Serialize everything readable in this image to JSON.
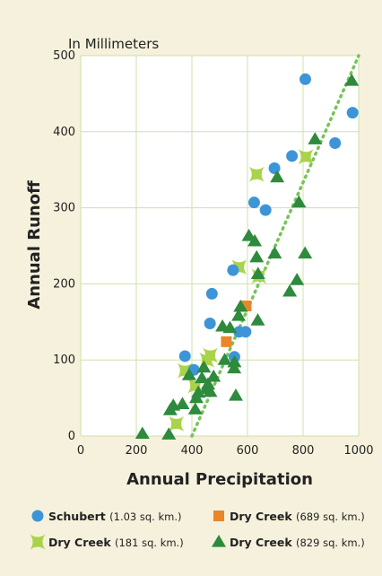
{
  "chart_data": {
    "type": "scatter",
    "title": "In Millimeters",
    "xlabel": "Annual Precipitation",
    "ylabel": "Annual Runoff",
    "xlim": [
      0,
      1000
    ],
    "ylim": [
      0,
      500
    ],
    "xticks": [
      "0",
      "200",
      "400",
      "600",
      "800",
      "1000"
    ],
    "yticks": [
      "0",
      "100",
      "200",
      "300",
      "400",
      "500"
    ],
    "grid": true,
    "legend_position": "bottom",
    "series": [
      {
        "name": "Schubert",
        "area": "(1.03 sq. km.)",
        "marker": "circle",
        "color": "#3d95d8",
        "points": [
          [
            375,
            105
          ],
          [
            407,
            87
          ],
          [
            465,
            148
          ],
          [
            472,
            187
          ],
          [
            548,
            218
          ],
          [
            570,
            137
          ],
          [
            593,
            137
          ],
          [
            553,
            104
          ],
          [
            624,
            307
          ],
          [
            665,
            297
          ],
          [
            697,
            352
          ],
          [
            760,
            368
          ],
          [
            808,
            469
          ],
          [
            915,
            385
          ],
          [
            978,
            425
          ]
        ]
      },
      {
        "name": "Dry Creek",
        "area": "(689 sq. km.)",
        "marker": "square",
        "color": "#e8862a",
        "points": [
          [
            524,
            124
          ],
          [
            595,
            171
          ]
        ]
      },
      {
        "name": "Dry Creek",
        "area": "(181 sq. km.)",
        "marker": "x",
        "color": "#a9d34a",
        "points": [
          [
            344,
            16
          ],
          [
            375,
            86
          ],
          [
            412,
            66
          ],
          [
            454,
            100
          ],
          [
            466,
            106
          ],
          [
            570,
            222
          ],
          [
            633,
            344
          ],
          [
            641,
            210
          ],
          [
            810,
            367
          ]
        ]
      },
      {
        "name": "Dry Creek",
        "area": "(829 sq. km.)",
        "marker": "triangle",
        "color": "#2e8a3c",
        "points": [
          [
            222,
            3
          ],
          [
            317,
            2
          ],
          [
            322,
            34
          ],
          [
            333,
            40
          ],
          [
            366,
            42
          ],
          [
            390,
            80
          ],
          [
            412,
            35
          ],
          [
            416,
            50
          ],
          [
            423,
            57
          ],
          [
            436,
            76
          ],
          [
            443,
            90
          ],
          [
            452,
            62
          ],
          [
            458,
            68
          ],
          [
            466,
            58
          ],
          [
            478,
            78
          ],
          [
            510,
            144
          ],
          [
            518,
            100
          ],
          [
            537,
            142
          ],
          [
            552,
            89
          ],
          [
            553,
            97
          ],
          [
            558,
            53
          ],
          [
            568,
            158
          ],
          [
            575,
            170
          ],
          [
            605,
            263
          ],
          [
            626,
            256
          ],
          [
            633,
            235
          ],
          [
            637,
            152
          ],
          [
            638,
            213
          ],
          [
            698,
            240
          ],
          [
            707,
            340
          ],
          [
            752,
            190
          ],
          [
            778,
            205
          ],
          [
            785,
            307
          ],
          [
            807,
            240
          ],
          [
            843,
            390
          ],
          [
            975,
            467
          ]
        ]
      }
    ],
    "trendline": {
      "style": "dotted",
      "color": "#77c35a",
      "from": [
        400,
        0
      ],
      "to": [
        1000,
        500
      ]
    }
  }
}
